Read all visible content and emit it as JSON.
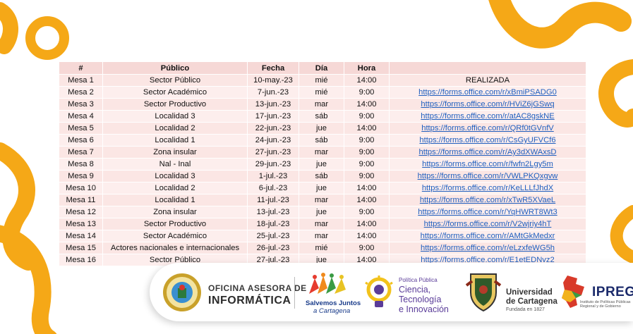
{
  "table": {
    "headers": [
      "#",
      "Público",
      "Fecha",
      "Día",
      "Hora",
      ""
    ],
    "rows": [
      {
        "num": "Mesa 1",
        "publico": "Sector Público",
        "fecha": "10-may.-23",
        "dia": "mié",
        "hora": "14:00",
        "link": "REALIZADA"
      },
      {
        "num": "Mesa 2",
        "publico": "Sector Académico",
        "fecha": "7-jun.-23",
        "dia": "mié",
        "hora": "9:00",
        "link": "https://forms.office.com/r/xBmiPSADG0"
      },
      {
        "num": "Mesa 3",
        "publico": "Sector Productivo",
        "fecha": "13-jun.-23",
        "dia": "mar",
        "hora": "14:00",
        "link": "https://forms.office.com/r/HViZ6jGSwq"
      },
      {
        "num": "Mesa 4",
        "publico": "Localidad 3",
        "fecha": "17-jun.-23",
        "dia": "sáb",
        "hora": "9:00",
        "link": "https://forms.office.com/r/atAC8gskNE"
      },
      {
        "num": "Mesa 5",
        "publico": "Localidad 2",
        "fecha": "22-jun.-23",
        "dia": "jue",
        "hora": "14:00",
        "link": "https://forms.office.com/r/QRf0tGVnfV"
      },
      {
        "num": "Mesa 6",
        "publico": "Localidad 1",
        "fecha": "24-jun.-23",
        "dia": "sáb",
        "hora": "9:00",
        "link": "https://forms.office.com/r/CsGyUFVCf6"
      },
      {
        "num": "Mesa 7",
        "publico": "Zona insular",
        "fecha": "27-jun.-23",
        "dia": "mar",
        "hora": "9:00",
        "link": "https://forms.office.com/r/Ay3dXWAxsD"
      },
      {
        "num": "Mesa 8",
        "publico": "Nal - Inal",
        "fecha": "29-jun.-23",
        "dia": "jue",
        "hora": "9:00",
        "link": "https://forms.office.com/r/fwfn2Lgy5m"
      },
      {
        "num": "Mesa 9",
        "publico": "Localidad 3",
        "fecha": "1-jul.-23",
        "dia": "sáb",
        "hora": "9:00",
        "link": "https://forms.office.com/r/VWLPKQxgvw"
      },
      {
        "num": "Mesa 10",
        "publico": "Localidad 2",
        "fecha": "6-jul.-23",
        "dia": "jue",
        "hora": "14:00",
        "link": "https://forms.office.com/r/KeLLLfJhdX"
      },
      {
        "num": "Mesa 11",
        "publico": "Localidad 1",
        "fecha": "11-jul.-23",
        "dia": "mar",
        "hora": "14:00",
        "link": "https://forms.office.com/r/xTwR5XVaeL"
      },
      {
        "num": "Mesa 12",
        "publico": "Zona insular",
        "fecha": "13-jul.-23",
        "dia": "jue",
        "hora": "9:00",
        "link": "https://forms.office.com/r/YqHWRT8Wt3"
      },
      {
        "num": "Mesa 13",
        "publico": "Sector Productivo",
        "fecha": "18-jul.-23",
        "dia": "mar",
        "hora": "14:00",
        "link": "https://forms.office.com/r/V2wjriy4hT"
      },
      {
        "num": "Mesa 14",
        "publico": "Sector Académico",
        "fecha": "25-jul.-23",
        "dia": "mar",
        "hora": "14:00",
        "link": "https://forms.office.com/r/AMtGkMedxr"
      },
      {
        "num": "Mesa 15",
        "publico": "Actores nacionales e internacionales",
        "fecha": "26-jul.-23",
        "dia": "mié",
        "hora": "9:00",
        "link": "https://forms.office.com/r/eLzxfeWG5h"
      },
      {
        "num": "Mesa 16",
        "publico": "Sector Público",
        "fecha": "27-jul.-23",
        "dia": "jue",
        "hora": "14:00",
        "link": "https://forms.office.com/r/E1etEDNvz2"
      }
    ]
  },
  "logos": {
    "oficina": {
      "line1": "OFICINA ASESORA DE",
      "line2": "INFORMÁTICA"
    },
    "salvemos": {
      "line1": "Salvemos Juntos",
      "line2": "a Cartagena"
    },
    "politica": {
      "line0": "Política Pública",
      "line1": "Ciencia,",
      "line2": "Tecnología",
      "line3": "e Innovación"
    },
    "universidad": {
      "line1": "Universidad",
      "line2": "de Cartagena",
      "line3": "Fundada en 1827"
    },
    "ipreg": {
      "name": "IPREG",
      "subtitle": "Instituto de Políticas Públicas Regional y de Gobierno"
    }
  },
  "colors": {
    "accent": "#f5a817",
    "header_bg": "#f6d8d6",
    "row_bg": "#fbe6e4",
    "link": "#1f5fbf"
  },
  "icons": [
    "cartagena-seal-icon",
    "salvemos-figures-icon",
    "lightbulb-icon",
    "university-shield-icon",
    "ipreg-map-icon"
  ]
}
